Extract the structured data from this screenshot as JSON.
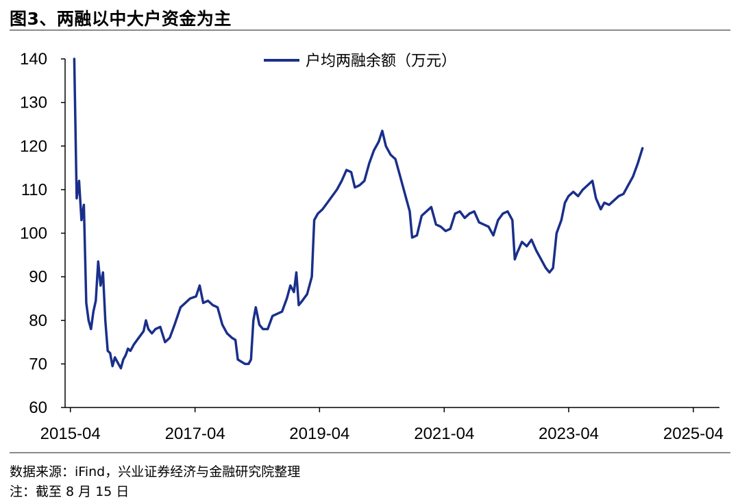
{
  "figure_title": "图3、两融以中大户资金为主",
  "source": "数据来源：iFind，兴业证券经济与金融研究院整理",
  "note": "注：截至 8 月 15 日",
  "colors": {
    "series": "#1a2f8a",
    "axis": "#000000",
    "rule": "#8a8a8a"
  },
  "chart_data": {
    "type": "line",
    "title": "",
    "xlabel": "",
    "ylabel": "",
    "ylim": [
      60,
      140
    ],
    "yticks": [
      60,
      70,
      80,
      90,
      100,
      110,
      120,
      130,
      140
    ],
    "xlim": [
      "2015-03-01",
      "2025-09-01"
    ],
    "xticks": [
      {
        "date": "2015-04-01",
        "label": "2015-04"
      },
      {
        "date": "2017-04-01",
        "label": "2017-04"
      },
      {
        "date": "2019-04-01",
        "label": "2019-04"
      },
      {
        "date": "2021-04-01",
        "label": "2021-04"
      },
      {
        "date": "2023-04-01",
        "label": "2023-04"
      },
      {
        "date": "2025-04-01",
        "label": "2025-04"
      }
    ],
    "grid": false,
    "legend": "top-center",
    "series": [
      {
        "name": "户均两融余额（万元）",
        "color": "#1a2f8a",
        "points": [
          [
            "2015-04-24",
            140.0
          ],
          [
            "2015-05-08",
            108.0
          ],
          [
            "2015-05-22",
            112.0
          ],
          [
            "2015-06-05",
            103.0
          ],
          [
            "2015-06-19",
            106.5
          ],
          [
            "2015-07-03",
            84.0
          ],
          [
            "2015-07-17",
            80.0
          ],
          [
            "2015-07-31",
            78.0
          ],
          [
            "2015-08-14",
            82.0
          ],
          [
            "2015-08-28",
            84.5
          ],
          [
            "2015-09-11",
            93.5
          ],
          [
            "2015-09-25",
            88.0
          ],
          [
            "2015-10-09",
            91.0
          ],
          [
            "2015-10-23",
            80.0
          ],
          [
            "2015-11-06",
            73.0
          ],
          [
            "2015-11-20",
            72.5
          ],
          [
            "2015-12-04",
            69.5
          ],
          [
            "2015-12-18",
            71.5
          ],
          [
            "2016-01-08",
            70.0
          ],
          [
            "2016-01-22",
            69.0
          ],
          [
            "2016-02-05",
            71.0
          ],
          [
            "2016-02-19",
            72.0
          ],
          [
            "2016-03-04",
            73.5
          ],
          [
            "2016-03-18",
            73.0
          ],
          [
            "2016-04-08",
            74.5
          ],
          [
            "2016-05-06",
            76.0
          ],
          [
            "2016-06-03",
            77.5
          ],
          [
            "2016-06-17",
            80.0
          ],
          [
            "2016-07-01",
            78.0
          ],
          [
            "2016-07-22",
            77.0
          ],
          [
            "2016-08-12",
            78.0
          ],
          [
            "2016-09-09",
            78.5
          ],
          [
            "2016-10-07",
            75.0
          ],
          [
            "2016-11-04",
            76.0
          ],
          [
            "2016-12-02",
            79.0
          ],
          [
            "2017-01-06",
            83.0
          ],
          [
            "2017-02-03",
            84.0
          ],
          [
            "2017-03-03",
            85.0
          ],
          [
            "2017-04-07",
            85.5
          ],
          [
            "2017-04-28",
            88.0
          ],
          [
            "2017-05-19",
            84.0
          ],
          [
            "2017-06-16",
            84.5
          ],
          [
            "2017-07-14",
            83.5
          ],
          [
            "2017-08-11",
            83.0
          ],
          [
            "2017-09-08",
            79.0
          ],
          [
            "2017-10-06",
            77.0
          ],
          [
            "2017-11-03",
            76.0
          ],
          [
            "2017-11-24",
            75.5
          ],
          [
            "2017-12-08",
            71.0
          ],
          [
            "2017-12-29",
            70.5
          ],
          [
            "2018-01-19",
            70.0
          ],
          [
            "2018-02-09",
            70.0
          ],
          [
            "2018-02-23",
            71.0
          ],
          [
            "2018-03-09",
            80.0
          ],
          [
            "2018-03-23",
            83.0
          ],
          [
            "2018-04-13",
            79.0
          ],
          [
            "2018-05-04",
            78.0
          ],
          [
            "2018-06-01",
            78.0
          ],
          [
            "2018-06-29",
            81.0
          ],
          [
            "2018-07-27",
            81.5
          ],
          [
            "2018-08-24",
            82.0
          ],
          [
            "2018-09-21",
            85.0
          ],
          [
            "2018-10-12",
            88.0
          ],
          [
            "2018-11-02",
            86.5
          ],
          [
            "2018-11-16",
            91.0
          ],
          [
            "2018-11-30",
            83.5
          ],
          [
            "2018-12-21",
            84.5
          ],
          [
            "2019-01-18",
            86.0
          ],
          [
            "2019-02-15",
            90.0
          ],
          [
            "2019-03-01",
            103.0
          ],
          [
            "2019-03-22",
            104.5
          ],
          [
            "2019-04-19",
            105.5
          ],
          [
            "2019-05-17",
            107.0
          ],
          [
            "2019-06-14",
            108.5
          ],
          [
            "2019-07-12",
            110.0
          ],
          [
            "2019-08-09",
            112.0
          ],
          [
            "2019-09-06",
            114.5
          ],
          [
            "2019-10-04",
            114.0
          ],
          [
            "2019-10-25",
            110.5
          ],
          [
            "2019-11-22",
            111.0
          ],
          [
            "2019-12-20",
            112.0
          ],
          [
            "2020-01-17",
            116.0
          ],
          [
            "2020-02-14",
            119.0
          ],
          [
            "2020-03-13",
            121.0
          ],
          [
            "2020-04-03",
            123.5
          ],
          [
            "2020-04-24",
            120.0
          ],
          [
            "2020-05-22",
            118.0
          ],
          [
            "2020-06-19",
            117.0
          ],
          [
            "2020-07-17",
            113.0
          ],
          [
            "2020-08-14",
            109.0
          ],
          [
            "2020-09-11",
            105.0
          ],
          [
            "2020-09-25",
            99.0
          ],
          [
            "2020-10-23",
            99.5
          ],
          [
            "2020-11-20",
            104.0
          ],
          [
            "2020-12-18",
            105.0
          ],
          [
            "2021-01-15",
            106.0
          ],
          [
            "2021-02-12",
            102.0
          ],
          [
            "2021-03-12",
            101.5
          ],
          [
            "2021-04-09",
            100.5
          ],
          [
            "2021-05-07",
            101.0
          ],
          [
            "2021-06-04",
            104.5
          ],
          [
            "2021-07-02",
            105.0
          ],
          [
            "2021-07-30",
            103.5
          ],
          [
            "2021-08-27",
            104.5
          ],
          [
            "2021-09-24",
            105.0
          ],
          [
            "2021-10-22",
            102.5
          ],
          [
            "2021-11-19",
            102.0
          ],
          [
            "2021-12-17",
            101.5
          ],
          [
            "2022-01-14",
            99.5
          ],
          [
            "2022-02-11",
            103.0
          ],
          [
            "2022-03-11",
            104.5
          ],
          [
            "2022-04-08",
            105.0
          ],
          [
            "2022-05-06",
            103.0
          ],
          [
            "2022-05-20",
            94.0
          ],
          [
            "2022-06-03",
            95.5
          ],
          [
            "2022-07-01",
            98.0
          ],
          [
            "2022-07-29",
            97.0
          ],
          [
            "2022-08-26",
            98.5
          ],
          [
            "2022-09-23",
            96.0
          ],
          [
            "2022-10-21",
            94.0
          ],
          [
            "2022-11-18",
            92.0
          ],
          [
            "2022-12-09",
            91.0
          ],
          [
            "2022-12-30",
            92.0
          ],
          [
            "2023-01-20",
            100.0
          ],
          [
            "2023-02-17",
            103.0
          ],
          [
            "2023-03-10",
            107.0
          ],
          [
            "2023-03-31",
            108.5
          ],
          [
            "2023-04-28",
            109.5
          ],
          [
            "2023-05-26",
            108.5
          ],
          [
            "2023-06-23",
            110.0
          ],
          [
            "2023-07-21",
            111.0
          ],
          [
            "2023-08-18",
            112.0
          ],
          [
            "2023-09-08",
            108.0
          ],
          [
            "2023-10-06",
            105.5
          ],
          [
            "2023-10-27",
            107.0
          ],
          [
            "2023-11-24",
            106.5
          ],
          [
            "2023-12-22",
            107.5
          ],
          [
            "2024-01-19",
            108.5
          ],
          [
            "2024-02-16",
            109.0
          ],
          [
            "2024-03-15",
            111.0
          ],
          [
            "2024-04-12",
            113.0
          ],
          [
            "2024-05-10",
            116.0
          ],
          [
            "2024-06-07",
            119.5
          ]
        ]
      }
    ]
  }
}
